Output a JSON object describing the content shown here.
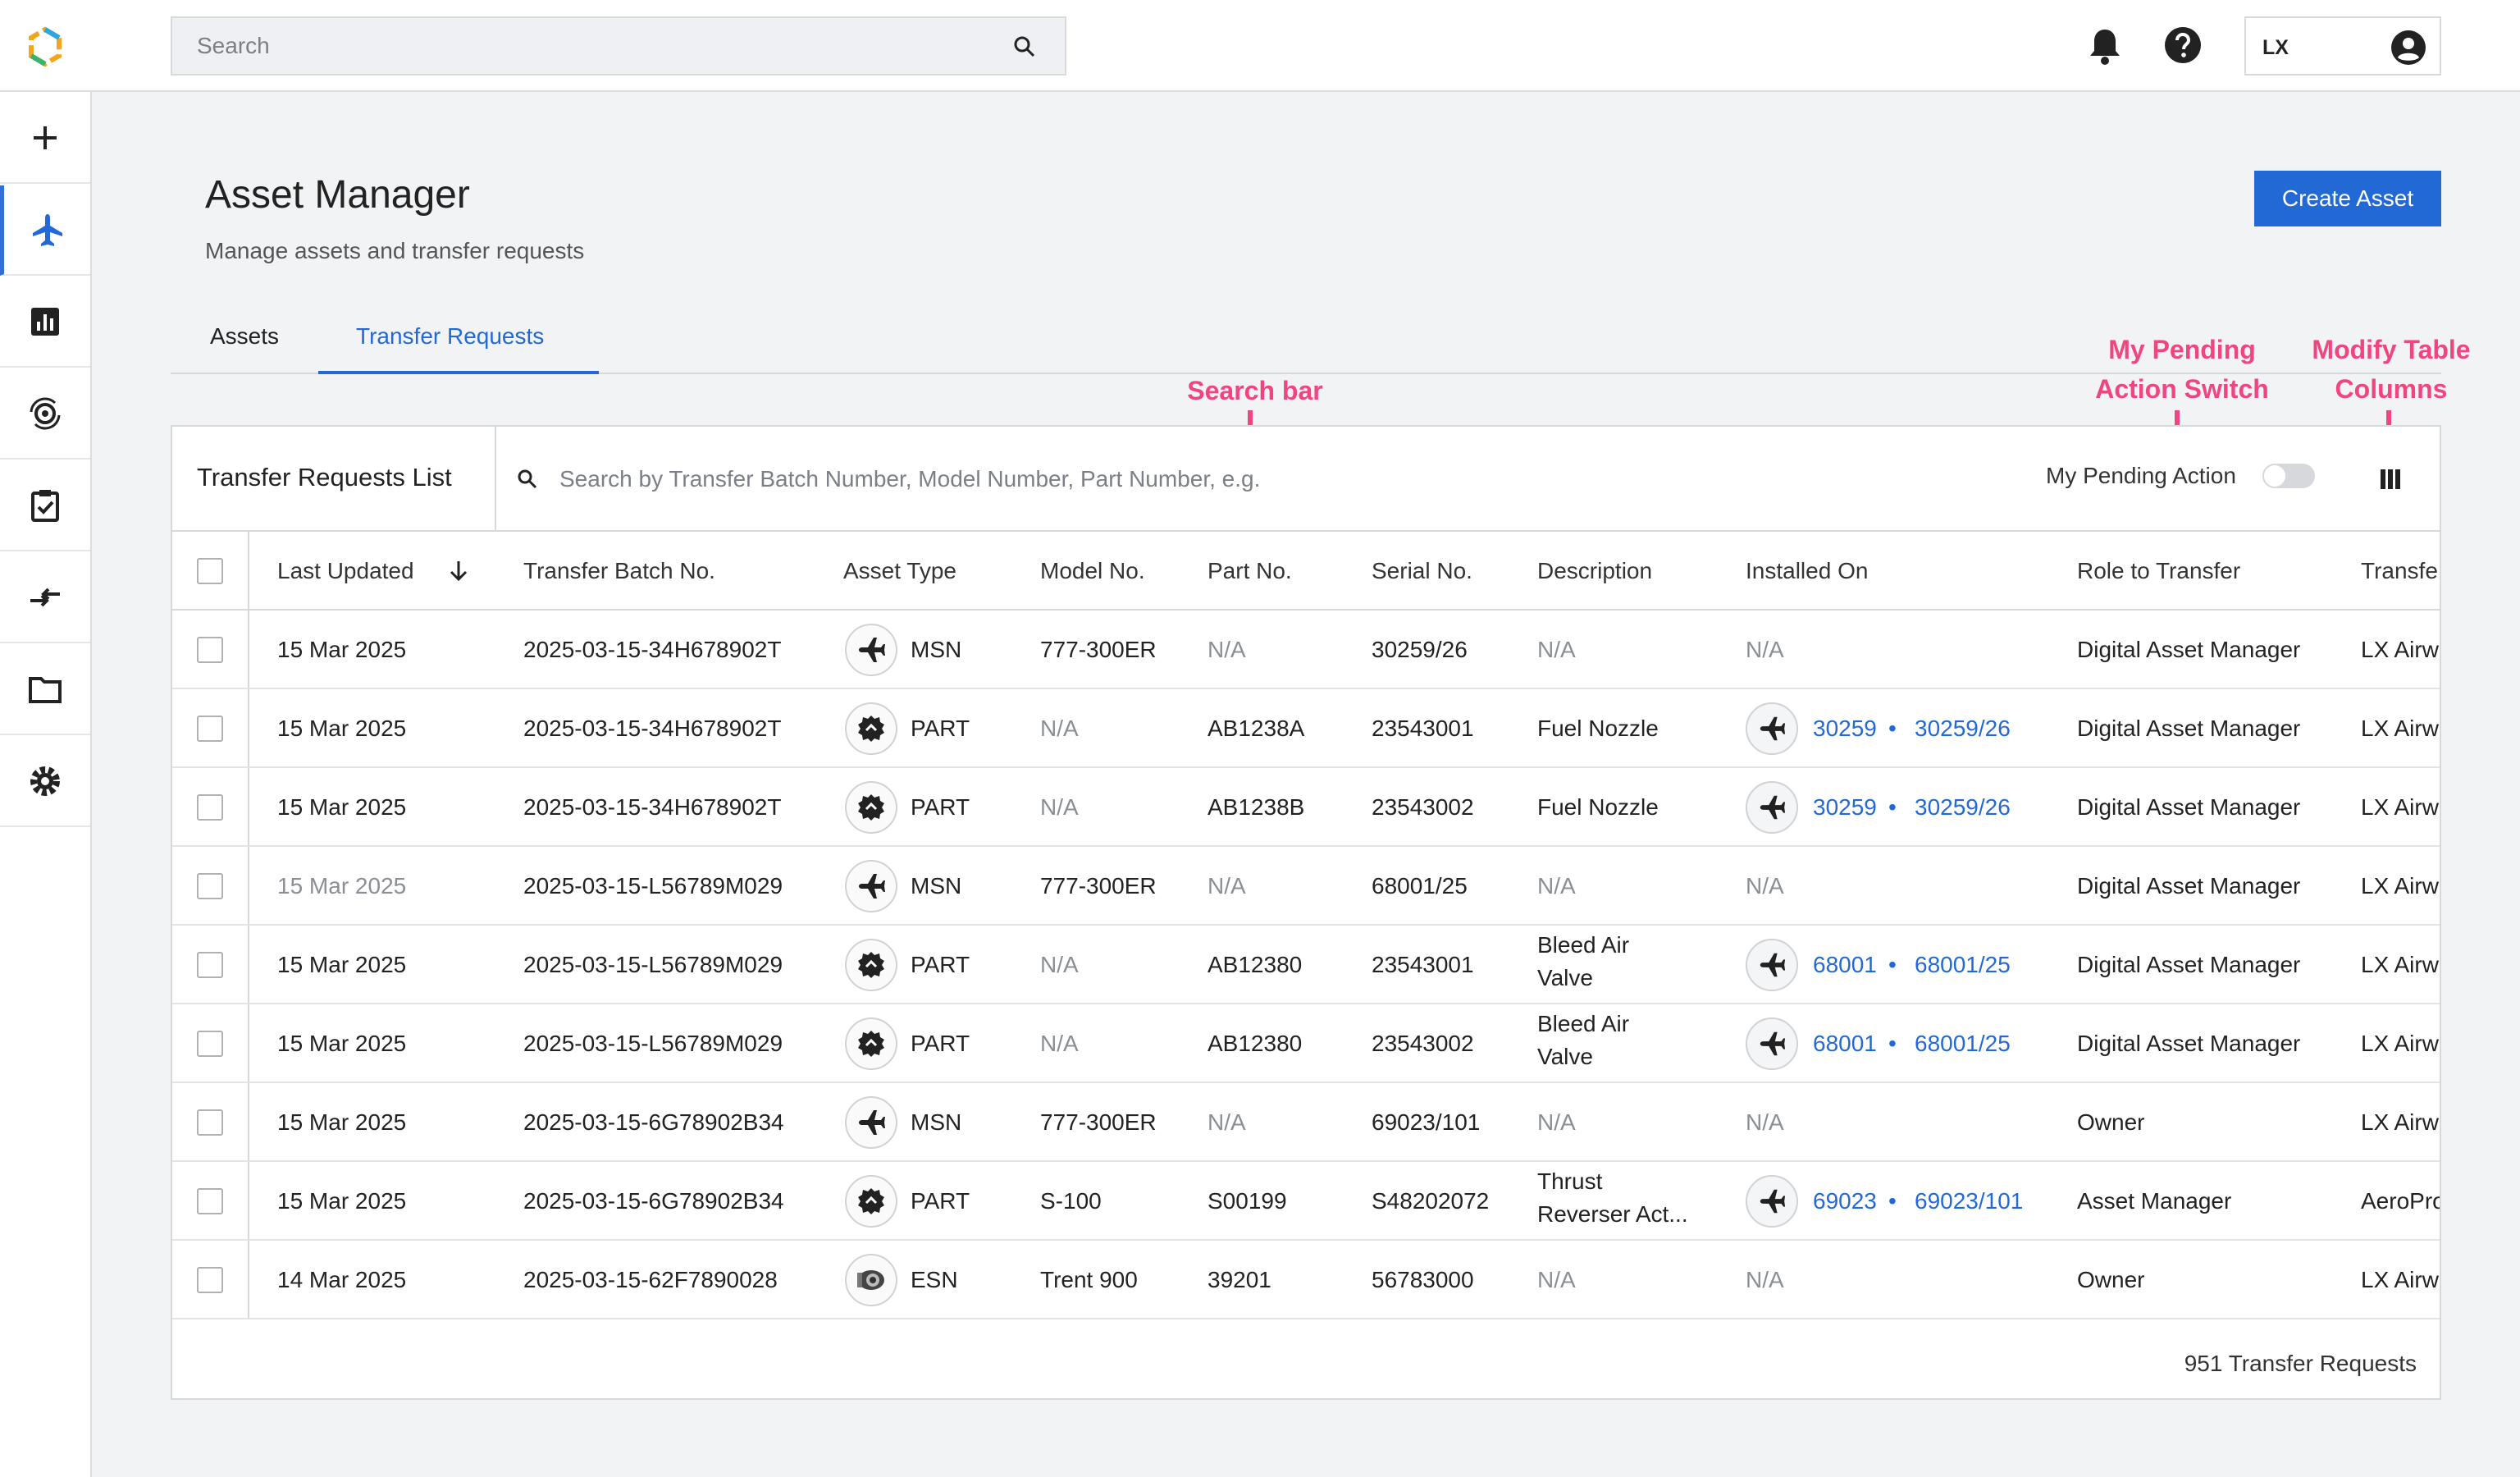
{
  "header": {
    "search_placeholder": "Search",
    "user_initials": "LX"
  },
  "page": {
    "title": "Asset Manager",
    "subtitle": "Manage assets and transfer requests",
    "create_button": "Create Asset"
  },
  "tabs": [
    {
      "label": "Assets",
      "active": false
    },
    {
      "label": "Transfer Requests",
      "active": true
    }
  ],
  "annotations": {
    "search_bar": "Search bar",
    "pending_switch_line1": "My Pending",
    "pending_switch_line2": "Action Switch",
    "modify_columns_line1": "Modify Table",
    "modify_columns_line2": "Columns"
  },
  "panel": {
    "title": "Transfer Requests List",
    "search_placeholder": "Search by Transfer Batch Number, Model Number, Part Number, e.g.",
    "pending_label": "My Pending Action",
    "pending_on": false,
    "footer_count": "951 Transfer Requests"
  },
  "table": {
    "columns": [
      "Last Updated",
      "Transfer Batch No.",
      "Asset Type",
      "Model No.",
      "Part No.",
      "Serial No.",
      "Description",
      "Installed On",
      "Role to Transfer",
      "Transfe"
    ],
    "rows": [
      {
        "updated": "15 Mar 2025",
        "batch": "2025-03-15-34H678902T",
        "type_icon": "plane-icon",
        "type": "MSN",
        "model": "777-300ER",
        "part": "N/A",
        "serial": "30259/26",
        "desc1": "N/A",
        "desc2": "",
        "inst_a": "N/A",
        "inst_b": "",
        "role": "Digital Asset Manager",
        "transfer": "LX Airw"
      },
      {
        "updated": "15 Mar 2025",
        "batch": "2025-03-15-34H678902T",
        "type_icon": "part-icon",
        "type": "PART",
        "model": "N/A",
        "part": "AB1238A",
        "serial": "23543001",
        "desc1": "Fuel Nozzle",
        "desc2": "",
        "inst_a": "30259",
        "inst_b": "30259/26",
        "role": "Digital Asset Manager",
        "transfer": "LX Airw"
      },
      {
        "updated": "15 Mar 2025",
        "batch": "2025-03-15-34H678902T",
        "type_icon": "part-icon",
        "type": "PART",
        "model": "N/A",
        "part": "AB1238B",
        "serial": "23543002",
        "desc1": "Fuel Nozzle",
        "desc2": "",
        "inst_a": "30259",
        "inst_b": "30259/26",
        "role": "Digital Asset Manager",
        "transfer": "LX Airw"
      },
      {
        "updated": "15 Mar 2025",
        "batch": "2025-03-15-L56789M029",
        "type_icon": "plane-icon",
        "type": "MSN",
        "model": "777-300ER",
        "part": "N/A",
        "serial": "68001/25",
        "desc1": "N/A",
        "desc2": "",
        "inst_a": "N/A",
        "inst_b": "",
        "role": "Digital Asset Manager",
        "transfer": "LX Airw"
      },
      {
        "updated": "15 Mar 2025",
        "batch": "2025-03-15-L56789M029",
        "type_icon": "part-icon",
        "type": "PART",
        "model": "N/A",
        "part": "AB12380",
        "serial": "23543001",
        "desc1": "Bleed Air",
        "desc2": "Valve",
        "inst_a": "68001",
        "inst_b": "68001/25",
        "role": "Digital Asset Manager",
        "transfer": "LX Airw"
      },
      {
        "updated": "15 Mar 2025",
        "batch": "2025-03-15-L56789M029",
        "type_icon": "part-icon",
        "type": "PART",
        "model": "N/A",
        "part": "AB12380",
        "serial": "23543002",
        "desc1": "Bleed Air",
        "desc2": "Valve",
        "inst_a": "68001",
        "inst_b": "68001/25",
        "role": "Digital Asset Manager",
        "transfer": "LX Airw"
      },
      {
        "updated": "15 Mar 2025",
        "batch": "2025-03-15-6G78902B34",
        "type_icon": "plane-icon",
        "type": "MSN",
        "model": "777-300ER",
        "part": "N/A",
        "serial": "69023/101",
        "desc1": "N/A",
        "desc2": "",
        "inst_a": "N/A",
        "inst_b": "",
        "role": "Owner",
        "transfer": "LX Airw"
      },
      {
        "updated": "15 Mar 2025",
        "batch": "2025-03-15-6G78902B34",
        "type_icon": "part-icon",
        "type": "PART",
        "model": "S-100",
        "part": "S00199",
        "serial": "S48202072",
        "desc1": "Thrust",
        "desc2": "Reverser Act...",
        "inst_a": "69023",
        "inst_b": "69023/101",
        "role": "Asset Manager",
        "transfer": "AeroPro"
      },
      {
        "updated": "14 Mar 2025",
        "batch": "2025-03-15-62F7890028",
        "type_icon": "engine-icon",
        "type": "ESN",
        "model": "Trent 900",
        "part": "39201",
        "serial": "56783000",
        "desc1": "N/A",
        "desc2": "",
        "inst_a": "N/A",
        "inst_b": "",
        "role": "Owner",
        "transfer": "LX Airw"
      }
    ]
  },
  "colors": {
    "accent": "#2369d6",
    "annotation": "#f0457f"
  }
}
